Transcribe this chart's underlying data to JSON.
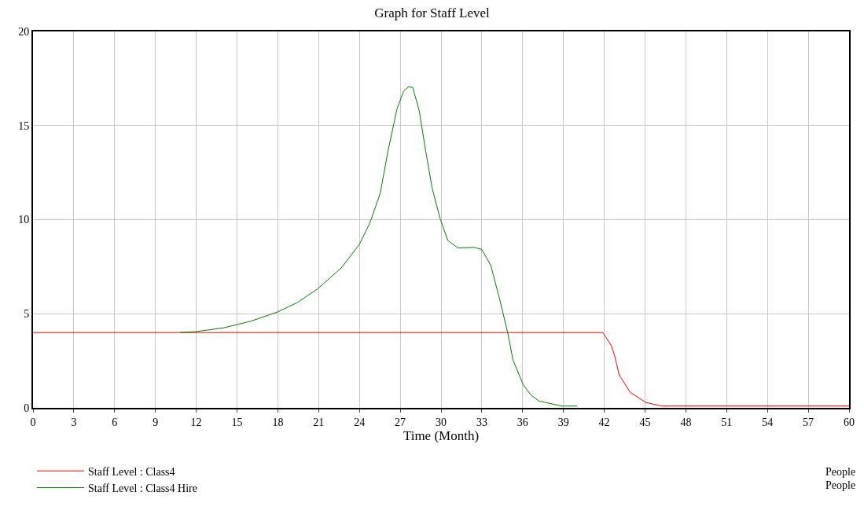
{
  "chart_data": {
    "type": "line",
    "title": "Graph for Staff Level",
    "xlabel": "Time (Month)",
    "xlim": [
      0,
      60
    ],
    "xticks": [
      0,
      3,
      6,
      9,
      12,
      15,
      18,
      21,
      24,
      27,
      30,
      33,
      36,
      39,
      42,
      45,
      48,
      51,
      54,
      57,
      60
    ],
    "ylim": [
      0,
      20
    ],
    "yticks": [
      0,
      5,
      10,
      15,
      20
    ],
    "grid": true,
    "legend": "bottom",
    "marker": "none",
    "line_style": "solid",
    "series": [
      {
        "name": "Staff Level : Class4",
        "color": "#ff0000",
        "x": [
          0,
          41.9,
          42.5,
          42.75,
          43.1,
          43.9,
          45.05,
          46.2,
          60
        ],
        "values": [
          4,
          4,
          3.33,
          2.8,
          1.75,
          0.83,
          0.29,
          0.1,
          0.1
        ]
      },
      {
        "name": "Staff Level : Class4 Hire",
        "color": "#008000",
        "x": [
          10.8,
          12,
          14,
          16,
          18,
          19.4,
          20.9,
          22.66,
          24.0,
          24.76,
          25.53,
          26.1,
          26.77,
          27.25,
          27.63,
          27.92,
          28.4,
          28.87,
          29.35,
          29.92,
          30.5,
          31.27,
          32.42,
          32.99,
          33.66,
          34.33,
          34.9,
          35.29,
          36.05,
          36.6,
          37.2,
          38.92,
          40
        ],
        "values": [
          4,
          4.05,
          4.25,
          4.6,
          5.1,
          5.58,
          6.31,
          7.43,
          8.69,
          9.81,
          11.4,
          13.65,
          15.9,
          16.83,
          17.06,
          17.02,
          15.77,
          13.65,
          11.67,
          10.08,
          8.89,
          8.49,
          8.53,
          8.42,
          7.57,
          5.71,
          4.0,
          2.54,
          1.22,
          0.69,
          0.36,
          0.09,
          0.1
        ]
      }
    ],
    "annotations": [
      "People",
      "People"
    ]
  }
}
